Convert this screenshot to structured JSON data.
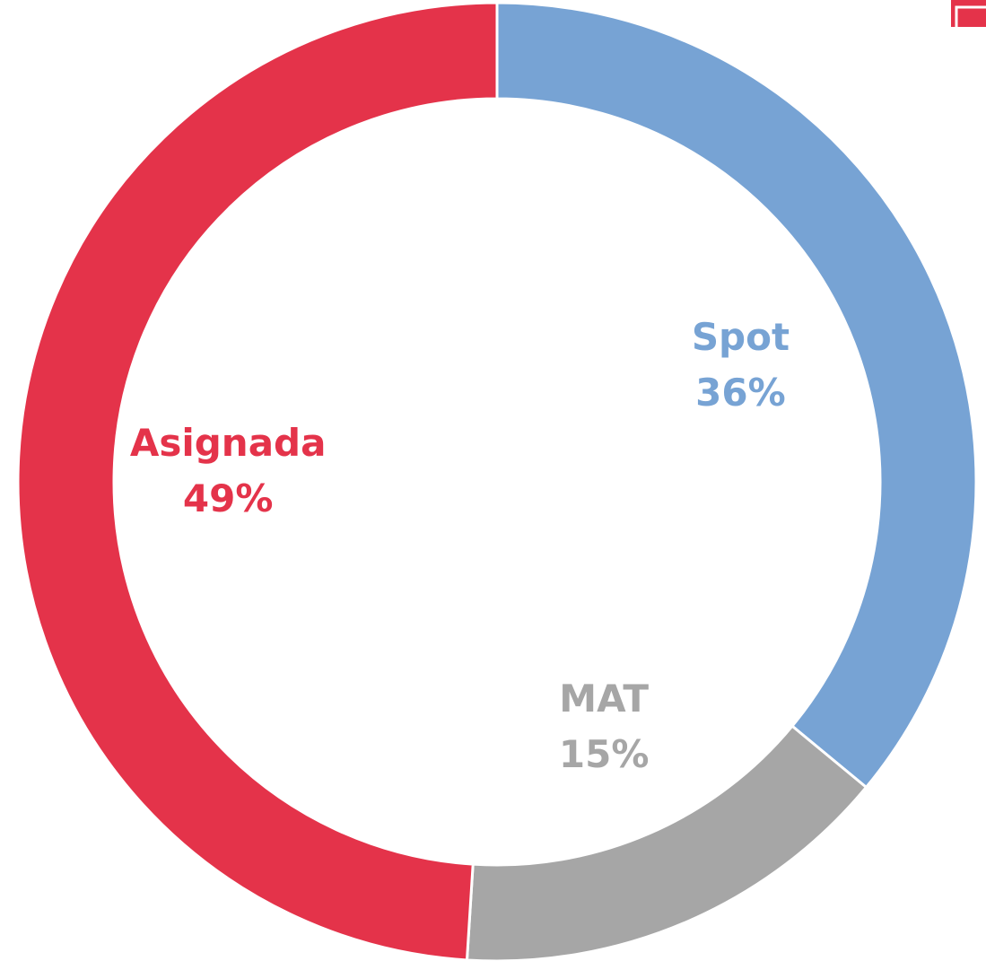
{
  "chart_data": {
    "type": "donut",
    "categories": [
      "Spot",
      "MAT",
      "Asignada"
    ],
    "values": [
      36,
      15,
      49
    ],
    "value_labels": [
      "36%",
      "15%",
      "49%"
    ],
    "colors": [
      "#77a3d4",
      "#a6a6a6",
      "#e4334a"
    ]
  }
}
